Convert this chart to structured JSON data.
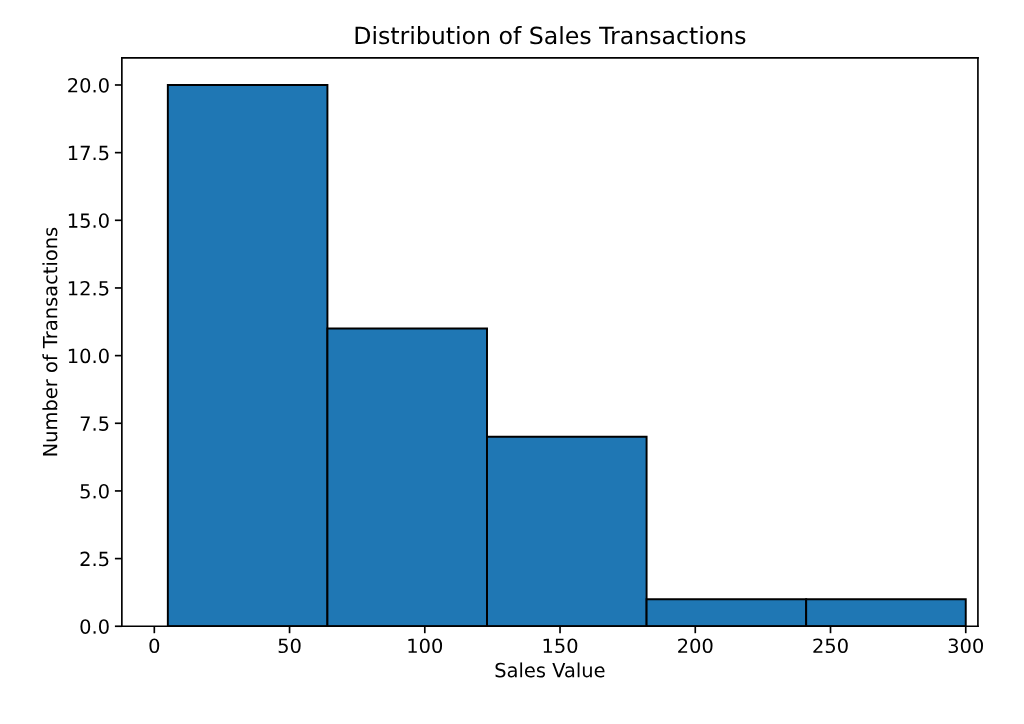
{
  "chart_data": {
    "type": "histogram",
    "title": "Distribution of Sales Transactions",
    "xlabel": "Sales Value",
    "ylabel": "Number of Transactions",
    "bins": [
      5,
      64,
      123,
      182,
      241,
      300
    ],
    "values": [
      20,
      11,
      7,
      1,
      1
    ],
    "color": "#1f77b4",
    "xlim": [
      -12,
      304.5
    ],
    "xticks": [
      0,
      50,
      100,
      150,
      200,
      250,
      300
    ],
    "ylim": [
      0,
      21
    ],
    "yticks": [
      {
        "value": 0,
        "label": "0.0"
      },
      {
        "value": 2.5,
        "label": "2.5"
      },
      {
        "value": 5,
        "label": "5.0"
      },
      {
        "value": 7.5,
        "label": "7.5"
      },
      {
        "value": 10,
        "label": "10.0"
      },
      {
        "value": 12.5,
        "label": "12.5"
      },
      {
        "value": 15,
        "label": "15.0"
      },
      {
        "value": 17.5,
        "label": "17.5"
      },
      {
        "value": 20,
        "label": "20.0"
      }
    ],
    "grid": false,
    "legend": false
  }
}
